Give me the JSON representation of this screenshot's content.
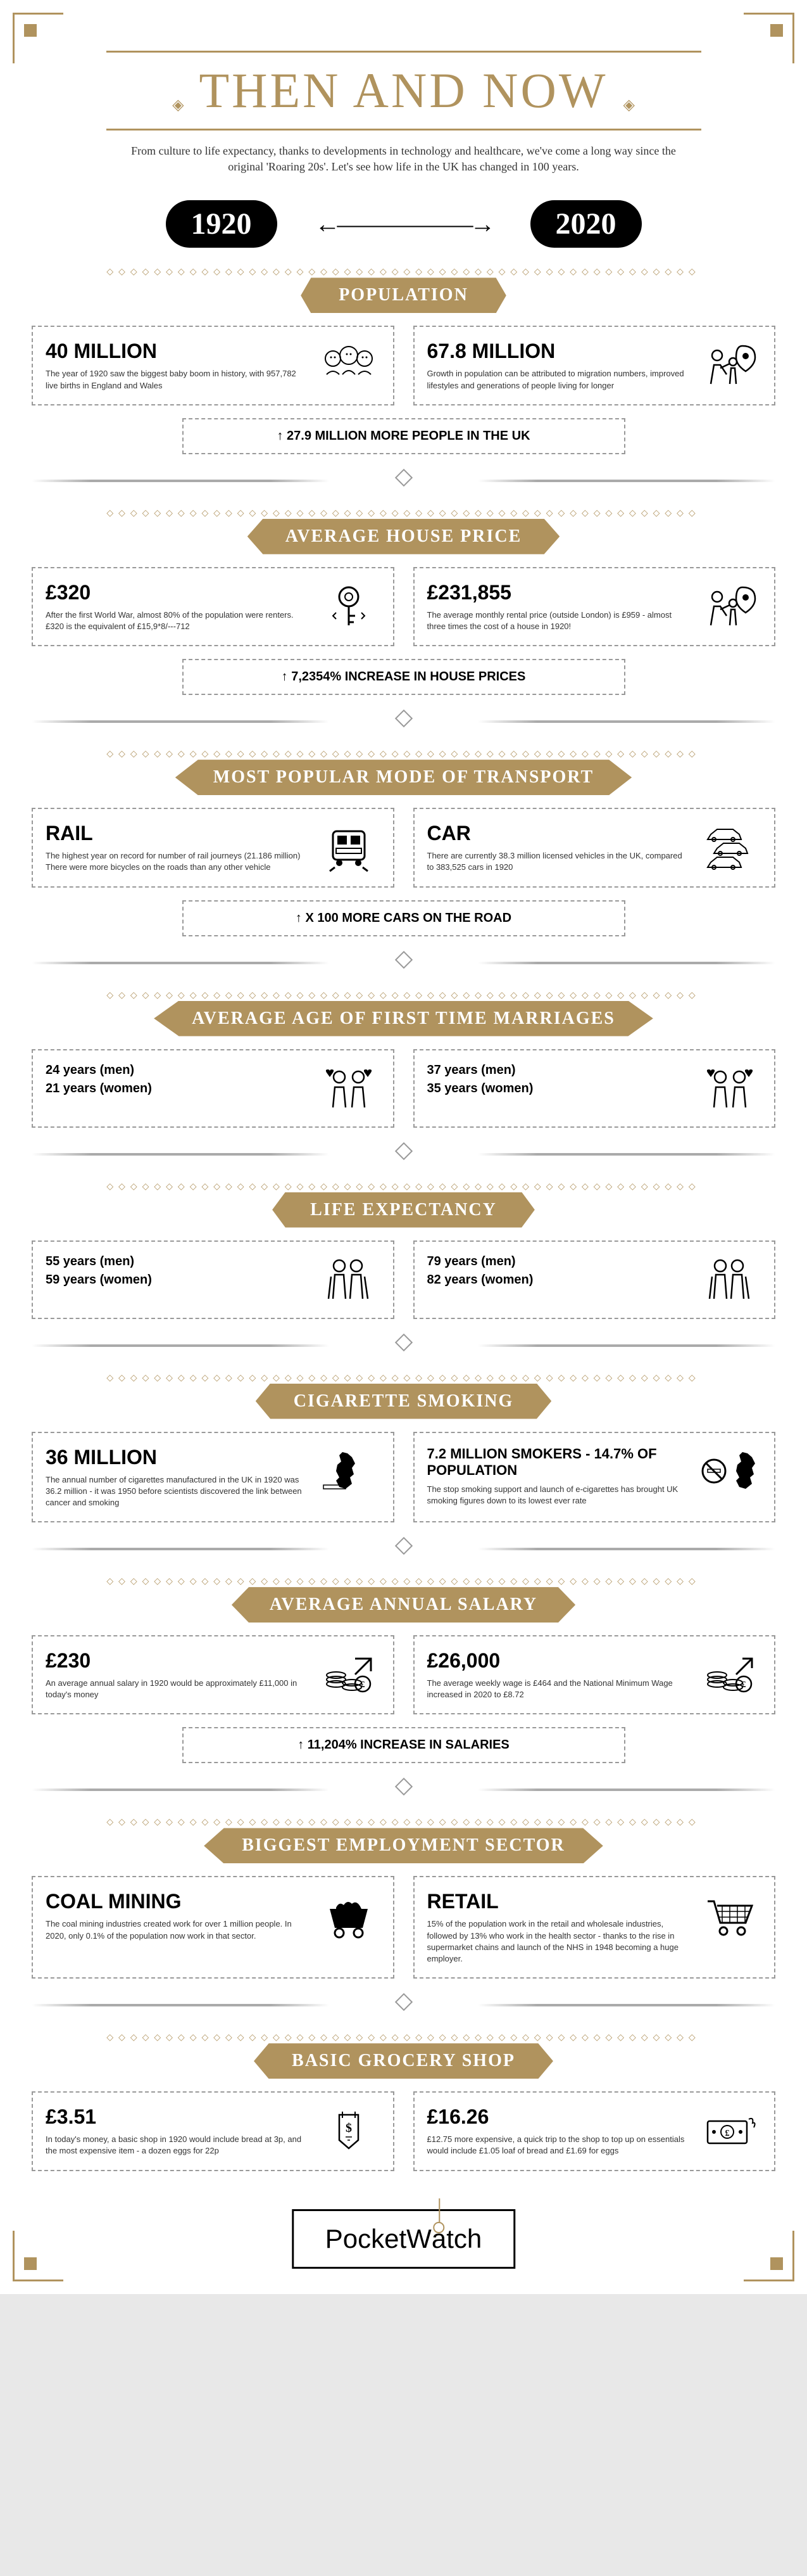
{
  "colors": {
    "gold": "#b0935e",
    "black": "#000000",
    "white": "#ffffff",
    "border": "#999999",
    "text": "#333333"
  },
  "title": "THEN AND NOW",
  "intro": "From culture to life expectancy, thanks to developments in technology and healthcare, we've come a long way since the original 'Roaring 20s'. Let's see how life in the UK has changed in 100 years.",
  "year_left": "1920",
  "year_right": "2020",
  "arrow": "←――――――→",
  "sections": [
    {
      "header": "POPULATION",
      "left_stat": "40 MILLION",
      "left_desc": "The year of 1920 saw the biggest baby boom in history, with 957,782 live births in England and Wales",
      "right_stat": "67.8 MILLION",
      "right_desc": "Growth in population can be attributed to migration numbers, improved lifestyles and generations of people living for longer",
      "summary": "↑ 27.9 MILLION MORE PEOPLE IN THE UK",
      "left_icon": "babies",
      "right_icon": "people-location"
    },
    {
      "header": "AVERAGE HOUSE PRICE",
      "left_stat": "£320",
      "left_desc": "After the first World War, almost 80% of the population were renters. £320 is the equivalent of £15,9*8/---712",
      "right_stat": "£231,855",
      "right_desc": "The average monthly rental price (outside London) is £959 - almost three times the cost of a house in 1920!",
      "summary": "↑ 7,2354% INCREASE IN HOUSE PRICES",
      "left_icon": "key",
      "right_icon": "people-location"
    },
    {
      "header": "MOST POPULAR MODE OF TRANSPORT",
      "left_stat": "RAIL",
      "left_desc": "The highest year on record for number of rail journeys (21.186 million) There were more bicycles on the roads than any other vehicle",
      "right_stat": "CAR",
      "right_desc": "There are currently 38.3 million licensed vehicles in the UK, compared to 383,525 cars in 1920",
      "summary": "↑ X 100 MORE CARS ON THE ROAD",
      "left_icon": "train",
      "right_icon": "cars"
    },
    {
      "header": "AVERAGE AGE OF FIRST TIME MARRIAGES",
      "left_sub1": "24 years (men)",
      "left_sub2": "21 years (women)",
      "right_sub1": "37 years (men)",
      "right_sub2": "35 years (women)",
      "left_icon": "couple-hearts",
      "right_icon": "couple-hearts"
    },
    {
      "header": "LIFE EXPECTANCY",
      "left_sub1": "55 years (men)",
      "left_sub2": "59 years (women)",
      "right_sub1": "79 years (men)",
      "right_sub2": "82 years (women)",
      "left_icon": "elderly",
      "right_icon": "elderly"
    },
    {
      "header": "CIGARETTE SMOKING",
      "left_stat": "36 MILLION",
      "left_desc": "The annual number of cigarettes manufactured in the UK in 1920 was 36.2 million - it was 1950 before scientists discovered the link between cancer and smoking",
      "right_stat": "7.2 MILLION SMOKERS - 14.7% OF POPULATION",
      "right_desc": "The stop smoking support and launch of e-cigarettes has brought UK smoking figures down to its lowest ever rate",
      "left_icon": "uk-cigarette",
      "right_icon": "uk-nosmoking"
    },
    {
      "header": "AVERAGE ANNUAL SALARY",
      "left_stat": "£230",
      "left_desc": "An average annual salary in 1920 would be approximately £11,000 in today's money",
      "right_stat": "£26,000",
      "right_desc": "The average weekly wage is £464 and the National Minimum Wage increased in 2020 to £8.72",
      "summary": "↑ 11,204% INCREASE IN SALARIES",
      "left_icon": "coins-down",
      "right_icon": "coins-up"
    },
    {
      "header": "BIGGEST EMPLOYMENT SECTOR",
      "left_stat": "COAL MINING",
      "left_desc": "The coal mining industries created work for over 1 million people. In 2020, only 0.1% of the population now work in that sector.",
      "right_stat": "RETAIL",
      "right_desc": "15% of the population work in the retail and wholesale industries, followed by 13% who work in the health sector - thanks to the rise in supermarket chains and launch of the NHS in 1948 becoming a huge employer.",
      "left_icon": "coal-cart",
      "right_icon": "shopping-cart"
    },
    {
      "header": "BASIC GROCERY SHOP",
      "left_stat": "£3.51",
      "left_desc": "In today's money, a basic shop in 1920 would include bread at 3p, and the most expensive item - a dozen eggs for 22p",
      "right_stat": "£16.26",
      "right_desc": "£12.75 more expensive, a quick trip to the shop to top up on essentials would include £1.05 loaf of bread and £1.69 for eggs",
      "left_icon": "price-tag",
      "right_icon": "money"
    }
  ],
  "footer_brand": "PocketWatch",
  "footer_p1": "Pocket",
  "footer_p2": "W",
  "footer_p3": "tch"
}
